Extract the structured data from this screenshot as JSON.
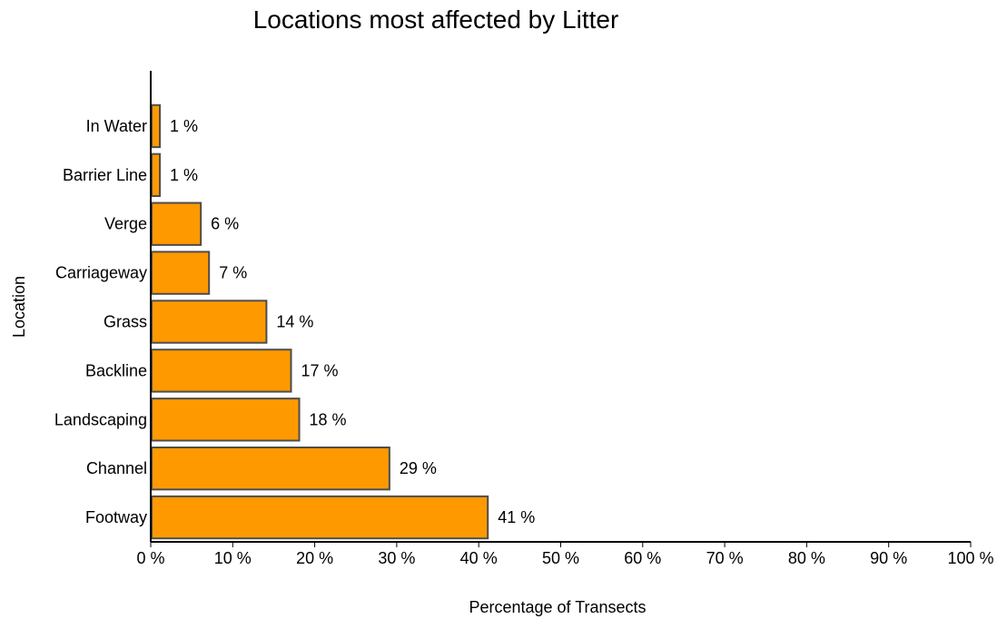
{
  "chart_data": {
    "type": "bar",
    "orientation": "horizontal",
    "title": "Locations most affected by Litter",
    "xlabel": "Percentage of Transects",
    "ylabel": "Location",
    "categories": [
      "In Water",
      "Barrier Line",
      "Verge",
      "Carriageway",
      "Grass",
      "Backline",
      "Landscaping",
      "Channel",
      "Footway"
    ],
    "values": [
      1,
      1,
      6,
      7,
      14,
      17,
      18,
      29,
      41
    ],
    "value_labels": [
      "1 %",
      "1 %",
      "6 %",
      "7 %",
      "14 %",
      "17 %",
      "18 %",
      "29 %",
      "41 %"
    ],
    "xlim": [
      0,
      100
    ],
    "x_ticks": [
      0,
      10,
      20,
      30,
      40,
      50,
      60,
      70,
      80,
      90,
      100
    ],
    "x_tick_labels": [
      "0 %",
      "10 %",
      "20 %",
      "30 %",
      "40 %",
      "50 %",
      "60 %",
      "70 %",
      "80 %",
      "90 %",
      "100 %"
    ],
    "grid": false,
    "legend": "none",
    "colors": {
      "bar_fill": "#FF9900",
      "bar_stroke": "#4d4d4d",
      "axis": "#000000"
    }
  }
}
